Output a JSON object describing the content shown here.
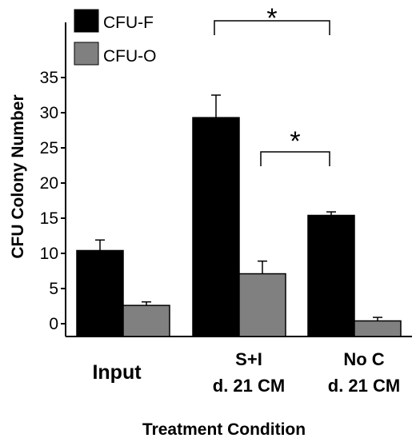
{
  "chart_data": {
    "type": "bar",
    "categories": [
      [
        "Input"
      ],
      [
        "S+I",
        "d. 21 CM"
      ],
      [
        "No C",
        "d. 21 CM"
      ]
    ],
    "series": [
      {
        "name": "CFU-F",
        "color": "#000000",
        "values": [
          10.4,
          29.3,
          15.4
        ],
        "errors": [
          1.5,
          3.2,
          0.5
        ]
      },
      {
        "name": "CFU-O",
        "color": "#808080",
        "values": [
          2.6,
          7.1,
          0.4
        ],
        "errors": [
          0.5,
          1.8,
          0.5
        ]
      }
    ],
    "xlabel": "Treatment Condition",
    "ylabel": "CFU Colony Number",
    "ylim": [
      0,
      35
    ],
    "yticks": [
      0,
      5,
      10,
      15,
      20,
      25,
      30,
      35
    ],
    "significance": [
      {
        "from_category": 1,
        "to_category": 2,
        "series_from": 0,
        "series_to": 0,
        "label": "*"
      },
      {
        "from_category": 1,
        "to_category": 2,
        "series_from": 1,
        "series_to": 0,
        "label": "*"
      }
    ],
    "grid": false,
    "legend_position": "top-left"
  }
}
